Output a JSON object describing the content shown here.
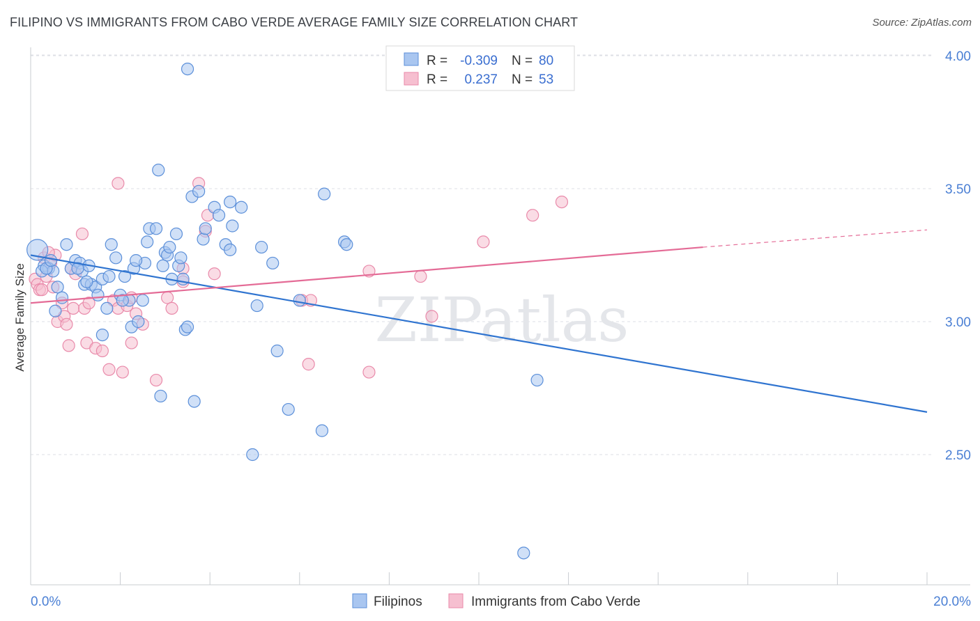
{
  "title": "FILIPINO VS IMMIGRANTS FROM CABO VERDE AVERAGE FAMILY SIZE CORRELATION CHART",
  "source": "Source: ZipAtlas.com",
  "watermark": "ZIPatlas",
  "colors": {
    "blue_fill": "#a9c6f0",
    "blue_stroke": "#5b8fd9",
    "blue_line": "#2f74d0",
    "pink_fill": "#f6bfd0",
    "pink_stroke": "#e98aaa",
    "pink_line": "#e46b96",
    "tick_text": "#4a7fd4"
  },
  "legend_box": {
    "rows": [
      {
        "r_label": "R =",
        "r_value": "-0.309",
        "n_label": "N =",
        "n_value": "80"
      },
      {
        "r_label": "R =",
        "r_value": "0.237",
        "n_label": "N =",
        "n_value": "53"
      }
    ]
  },
  "chart_data": {
    "type": "scatter",
    "title": "FILIPINO VS IMMIGRANTS FROM CABO VERDE AVERAGE FAMILY SIZE CORRELATION CHART",
    "xlabel": "",
    "ylabel": "Average Family Size",
    "xlim": [
      0,
      20
    ],
    "ylim": [
      2.0,
      4.1
    ],
    "x_tick_labels": [
      "0.0%",
      "20.0%"
    ],
    "y_ticks": [
      2.5,
      3.0,
      3.5,
      4.0
    ],
    "y_tick_labels": [
      "2.50",
      "3.00",
      "3.50",
      "4.00"
    ],
    "grid": true,
    "legend_position": "top-center",
    "series": [
      {
        "name": "Filipinos",
        "r": -0.309,
        "n": 80,
        "trend": {
          "x0": 0,
          "y0": 3.25,
          "x1": 20,
          "y1": 2.66
        },
        "points": [
          [
            0.15,
            3.27
          ],
          [
            0.3,
            3.21
          ],
          [
            0.4,
            3.2
          ],
          [
            0.5,
            3.19
          ],
          [
            0.6,
            3.13
          ],
          [
            0.55,
            3.04
          ],
          [
            0.7,
            3.09
          ],
          [
            0.8,
            3.29
          ],
          [
            0.9,
            3.2
          ],
          [
            1.0,
            3.23
          ],
          [
            1.1,
            3.22
          ],
          [
            1.15,
            3.19
          ],
          [
            1.2,
            3.14
          ],
          [
            1.3,
            3.21
          ],
          [
            1.35,
            3.14
          ],
          [
            1.45,
            3.13
          ],
          [
            1.5,
            3.1
          ],
          [
            1.6,
            3.16
          ],
          [
            1.6,
            2.95
          ],
          [
            1.7,
            3.05
          ],
          [
            1.75,
            3.17
          ],
          [
            1.8,
            3.29
          ],
          [
            1.9,
            3.24
          ],
          [
            2.0,
            3.1
          ],
          [
            2.1,
            3.17
          ],
          [
            2.2,
            3.08
          ],
          [
            2.25,
            2.98
          ],
          [
            2.3,
            3.2
          ],
          [
            2.4,
            3.0
          ],
          [
            2.5,
            3.08
          ],
          [
            2.55,
            3.22
          ],
          [
            2.6,
            3.3
          ],
          [
            2.65,
            3.35
          ],
          [
            2.8,
            3.35
          ],
          [
            2.85,
            3.57
          ],
          [
            2.9,
            2.72
          ],
          [
            3.0,
            3.26
          ],
          [
            3.05,
            3.25
          ],
          [
            3.1,
            3.28
          ],
          [
            3.15,
            3.16
          ],
          [
            3.25,
            3.33
          ],
          [
            3.3,
            3.21
          ],
          [
            3.4,
            3.16
          ],
          [
            3.45,
            2.97
          ],
          [
            3.5,
            2.98
          ],
          [
            3.6,
            3.47
          ],
          [
            3.65,
            2.7
          ],
          [
            3.5,
            3.95
          ],
          [
            3.75,
            3.49
          ],
          [
            3.85,
            3.31
          ],
          [
            3.9,
            3.35
          ],
          [
            4.1,
            3.43
          ],
          [
            4.2,
            3.4
          ],
          [
            4.35,
            3.29
          ],
          [
            4.45,
            3.27
          ],
          [
            4.45,
            3.45
          ],
          [
            4.5,
            3.36
          ],
          [
            4.7,
            3.43
          ],
          [
            4.95,
            2.5
          ],
          [
            5.05,
            3.06
          ],
          [
            5.15,
            3.28
          ],
          [
            5.4,
            3.22
          ],
          [
            5.5,
            2.89
          ],
          [
            5.75,
            2.67
          ],
          [
            6.0,
            3.08
          ],
          [
            6.5,
            2.59
          ],
          [
            6.55,
            3.48
          ],
          [
            7.0,
            3.3
          ],
          [
            7.05,
            3.29
          ],
          [
            11.3,
            2.78
          ],
          [
            11.0,
            2.13
          ],
          [
            0.25,
            3.19
          ],
          [
            0.35,
            3.2
          ],
          [
            0.45,
            3.23
          ],
          [
            1.05,
            3.2
          ],
          [
            1.25,
            3.15
          ],
          [
            2.05,
            3.08
          ],
          [
            2.35,
            3.23
          ],
          [
            3.35,
            3.24
          ],
          [
            2.95,
            3.21
          ]
        ]
      },
      {
        "name": "Immigrants from Cabo Verde",
        "r": 0.237,
        "n": 53,
        "trend": {
          "x0": 0,
          "y0": 3.07,
          "x1": 15,
          "y1": 3.28,
          "dash_to_x": 20,
          "dash_to_y": 3.345
        },
        "points": [
          [
            0.1,
            3.16
          ],
          [
            0.15,
            3.14
          ],
          [
            0.2,
            3.12
          ],
          [
            0.3,
            3.24
          ],
          [
            0.35,
            3.17
          ],
          [
            0.45,
            3.22
          ],
          [
            0.5,
            3.13
          ],
          [
            0.55,
            3.25
          ],
          [
            0.6,
            3.0
          ],
          [
            0.7,
            3.07
          ],
          [
            0.75,
            3.02
          ],
          [
            0.8,
            2.99
          ],
          [
            0.85,
            2.91
          ],
          [
            0.9,
            3.2
          ],
          [
            0.95,
            3.05
          ],
          [
            1.0,
            3.18
          ],
          [
            1.15,
            3.33
          ],
          [
            1.2,
            3.05
          ],
          [
            1.25,
            2.92
          ],
          [
            1.3,
            3.07
          ],
          [
            1.45,
            2.9
          ],
          [
            1.6,
            2.89
          ],
          [
            1.75,
            2.82
          ],
          [
            1.85,
            3.08
          ],
          [
            1.95,
            3.05
          ],
          [
            1.95,
            3.52
          ],
          [
            2.05,
            2.81
          ],
          [
            2.15,
            3.06
          ],
          [
            2.25,
            3.09
          ],
          [
            2.25,
            2.92
          ],
          [
            2.35,
            3.03
          ],
          [
            2.5,
            2.99
          ],
          [
            2.8,
            2.78
          ],
          [
            3.05,
            3.09
          ],
          [
            3.15,
            3.05
          ],
          [
            3.4,
            3.2
          ],
          [
            3.4,
            3.15
          ],
          [
            3.75,
            3.52
          ],
          [
            3.9,
            3.34
          ],
          [
            3.95,
            3.4
          ],
          [
            4.1,
            3.18
          ],
          [
            6.05,
            3.08
          ],
          [
            6.25,
            3.08
          ],
          [
            6.2,
            2.84
          ],
          [
            7.55,
            3.19
          ],
          [
            7.55,
            2.81
          ],
          [
            8.7,
            3.17
          ],
          [
            8.95,
            3.02
          ],
          [
            10.1,
            3.3
          ],
          [
            11.2,
            3.4
          ],
          [
            11.85,
            3.45
          ],
          [
            0.25,
            3.12
          ],
          [
            0.4,
            3.26
          ]
        ]
      }
    ]
  }
}
